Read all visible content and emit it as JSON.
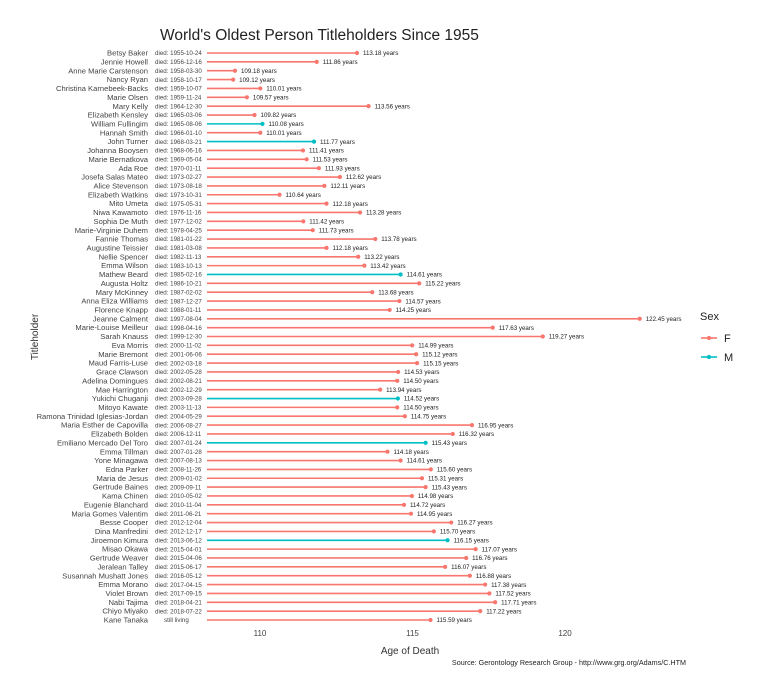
{
  "chart_data": {
    "type": "lollipop",
    "title": "World's Oldest Person Titleholders Since 1955",
    "xlabel": "Age of Death",
    "ylabel": "Titleholder",
    "caption": "Source: Gerontology Research Group - http://www.grg.org/Adams/C.HTM",
    "x_ticks": [
      110,
      115,
      120
    ],
    "xlim": [
      108.3,
      123.5
    ],
    "grid": false,
    "value_suffix": " years",
    "legend": {
      "title": "Sex",
      "placement": "right",
      "entries": [
        {
          "label": "F",
          "color": "#F8766D"
        },
        {
          "label": "M",
          "color": "#00BFC4"
        }
      ]
    },
    "rows": [
      {
        "name": "Betsy Baker",
        "died": "died: 1955-10-24",
        "age": 113.18,
        "sex": "F"
      },
      {
        "name": "Jennie Howell",
        "died": "died: 1956-12-16",
        "age": 111.86,
        "sex": "F"
      },
      {
        "name": "Anne Marie Carstenson",
        "died": "died: 1958-03-30",
        "age": 109.18,
        "sex": "F"
      },
      {
        "name": "Nancy Ryan",
        "died": "died: 1958-10-17",
        "age": 109.12,
        "sex": "F"
      },
      {
        "name": "Christina Karnebeek-Backs",
        "died": "died: 1959-10-07",
        "age": 110.01,
        "sex": "F"
      },
      {
        "name": "Marie Olsen",
        "died": "died: 1959-11-24",
        "age": 109.57,
        "sex": "F"
      },
      {
        "name": "Mary Kelly",
        "died": "died: 1964-12-30",
        "age": 113.56,
        "sex": "F"
      },
      {
        "name": "Elizabeth Kensley",
        "died": "died: 1965-03-06",
        "age": 109.82,
        "sex": "F"
      },
      {
        "name": "William Fullingim",
        "died": "died: 1965-08-06",
        "age": 110.08,
        "sex": "M"
      },
      {
        "name": "Hannah Smith",
        "died": "died: 1966-01-10",
        "age": 110.01,
        "sex": "F"
      },
      {
        "name": "John Turner",
        "died": "died: 1968-03-21",
        "age": 111.77,
        "sex": "M"
      },
      {
        "name": "Johanna Booysen",
        "died": "died: 1968-06-16",
        "age": 111.41,
        "sex": "F"
      },
      {
        "name": "Marie Bernatkova",
        "died": "died: 1969-05-04",
        "age": 111.53,
        "sex": "F"
      },
      {
        "name": "Ada Roe",
        "died": "died: 1970-01-11",
        "age": 111.93,
        "sex": "F"
      },
      {
        "name": "Josefa Salas Mateo",
        "died": "died: 1973-02-27",
        "age": 112.62,
        "sex": "F"
      },
      {
        "name": "Alice Stevenson",
        "died": "died: 1973-08-18",
        "age": 112.11,
        "sex": "F"
      },
      {
        "name": "Elizabeth Watkins",
        "died": "died: 1973-10-31",
        "age": 110.64,
        "sex": "F"
      },
      {
        "name": "Mito Umeta",
        "died": "died: 1975-05-31",
        "age": 112.18,
        "sex": "F"
      },
      {
        "name": "Niwa Kawamoto",
        "died": "died: 1976-11-16",
        "age": 113.28,
        "sex": "F"
      },
      {
        "name": "Sophia De Muth",
        "died": "died: 1977-12-02",
        "age": 111.42,
        "sex": "F"
      },
      {
        "name": "Marie-Virginie Duhem",
        "died": "died: 1978-04-25",
        "age": 111.73,
        "sex": "F"
      },
      {
        "name": "Fannie Thomas",
        "died": "died: 1981-01-22",
        "age": 113.78,
        "sex": "F"
      },
      {
        "name": "Augustine Teissier",
        "died": "died: 1981-03-08",
        "age": 112.18,
        "sex": "F"
      },
      {
        "name": "Nellie Spencer",
        "died": "died: 1982-11-13",
        "age": 113.22,
        "sex": "F"
      },
      {
        "name": "Emma Wilson",
        "died": "died: 1983-10-13",
        "age": 113.42,
        "sex": "F"
      },
      {
        "name": "Mathew Beard",
        "died": "died: 1985-02-16",
        "age": 114.61,
        "sex": "M"
      },
      {
        "name": "Augusta Holtz",
        "died": "died: 1986-10-21",
        "age": 115.22,
        "sex": "F"
      },
      {
        "name": "Mary McKinney",
        "died": "died: 1987-02-02",
        "age": 113.68,
        "sex": "F"
      },
      {
        "name": "Anna Eliza Williams",
        "died": "died: 1987-12-27",
        "age": 114.57,
        "sex": "F"
      },
      {
        "name": "Florence Knapp",
        "died": "died: 1988-01-11",
        "age": 114.25,
        "sex": "F"
      },
      {
        "name": "Jeanne Calment",
        "died": "died: 1997-08-04",
        "age": 122.45,
        "sex": "F"
      },
      {
        "name": "Marie-Louise Meilleur",
        "died": "died: 1998-04-16",
        "age": 117.63,
        "sex": "F"
      },
      {
        "name": "Sarah Knauss",
        "died": "died: 1999-12-30",
        "age": 119.27,
        "sex": "F"
      },
      {
        "name": "Eva Morris",
        "died": "died: 2000-11-02",
        "age": 114.99,
        "sex": "F"
      },
      {
        "name": "Marie Bremont",
        "died": "died: 2001-06-06",
        "age": 115.12,
        "sex": "F"
      },
      {
        "name": "Maud Farris-Luse",
        "died": "died: 2002-03-18",
        "age": 115.15,
        "sex": "F"
      },
      {
        "name": "Grace Clawson",
        "died": "died: 2002-05-28",
        "age": 114.53,
        "sex": "F"
      },
      {
        "name": "Adelina Domingues",
        "died": "died: 2002-08-21",
        "age": 114.5,
        "sex": "F"
      },
      {
        "name": "Mae Harrington",
        "died": "died: 2002-12-29",
        "age": 113.94,
        "sex": "F"
      },
      {
        "name": "Yukichi Chuganji",
        "died": "died: 2003-09-28",
        "age": 114.52,
        "sex": "M"
      },
      {
        "name": "Mitoyo Kawate",
        "died": "died: 2003-11-13",
        "age": 114.5,
        "sex": "F"
      },
      {
        "name": "Ramona Trinidad Iglesias-Jordan",
        "died": "died: 2004-05-29",
        "age": 114.75,
        "sex": "F"
      },
      {
        "name": "Maria Esther de Capovilla",
        "died": "died: 2006-08-27",
        "age": 116.95,
        "sex": "F"
      },
      {
        "name": "Elizabeth Bolden",
        "died": "died: 2006-12-11",
        "age": 116.32,
        "sex": "F"
      },
      {
        "name": "Emiliano Mercado Del Toro",
        "died": "died: 2007-01-24",
        "age": 115.43,
        "sex": "M"
      },
      {
        "name": "Emma Tillman",
        "died": "died: 2007-01-28",
        "age": 114.18,
        "sex": "F"
      },
      {
        "name": "Yone Minagawa",
        "died": "died: 2007-08-13",
        "age": 114.61,
        "sex": "F"
      },
      {
        "name": "Edna Parker",
        "died": "died: 2008-11-26",
        "age": 115.6,
        "sex": "F"
      },
      {
        "name": "Maria de Jesus",
        "died": "died: 2009-01-02",
        "age": 115.31,
        "sex": "F"
      },
      {
        "name": "Gertrude Baines",
        "died": "died: 2009-09-11",
        "age": 115.43,
        "sex": "F"
      },
      {
        "name": "Kama Chinen",
        "died": "died: 2010-05-02",
        "age": 114.98,
        "sex": "F"
      },
      {
        "name": "Eugenie Blanchard",
        "died": "died: 2010-11-04",
        "age": 114.72,
        "sex": "F"
      },
      {
        "name": "Maria Gomes Valentim",
        "died": "died: 2011-06-21",
        "age": 114.95,
        "sex": "F"
      },
      {
        "name": "Besse Cooper",
        "died": "died: 2012-12-04",
        "age": 116.27,
        "sex": "F"
      },
      {
        "name": "Dina Manfredini",
        "died": "died: 2012-12-17",
        "age": 115.7,
        "sex": "F"
      },
      {
        "name": "Jiroemon Kimura",
        "died": "died: 2013-06-12",
        "age": 116.15,
        "sex": "M"
      },
      {
        "name": "Misao Okawa",
        "died": "died: 2015-04-01",
        "age": 117.07,
        "sex": "F"
      },
      {
        "name": "Gertrude Weaver",
        "died": "died: 2015-04-06",
        "age": 116.76,
        "sex": "F"
      },
      {
        "name": "Jeralean Talley",
        "died": "died: 2015-06-17",
        "age": 116.07,
        "sex": "F"
      },
      {
        "name": "Susannah Mushatt Jones",
        "died": "died: 2016-05-12",
        "age": 116.88,
        "sex": "F"
      },
      {
        "name": "Emma Morano",
        "died": "died: 2017-04-15",
        "age": 117.38,
        "sex": "F"
      },
      {
        "name": "Violet Brown",
        "died": "died: 2017-09-15",
        "age": 117.52,
        "sex": "F"
      },
      {
        "name": "Nabi Tajima",
        "died": "died: 2018-04-21",
        "age": 117.71,
        "sex": "F"
      },
      {
        "name": "Chiyo Miyako",
        "died": "died: 2018-07-22",
        "age": 117.22,
        "sex": "F"
      },
      {
        "name": "Kane Tanaka",
        "died": "still living",
        "age": 115.59,
        "sex": "F"
      }
    ]
  }
}
